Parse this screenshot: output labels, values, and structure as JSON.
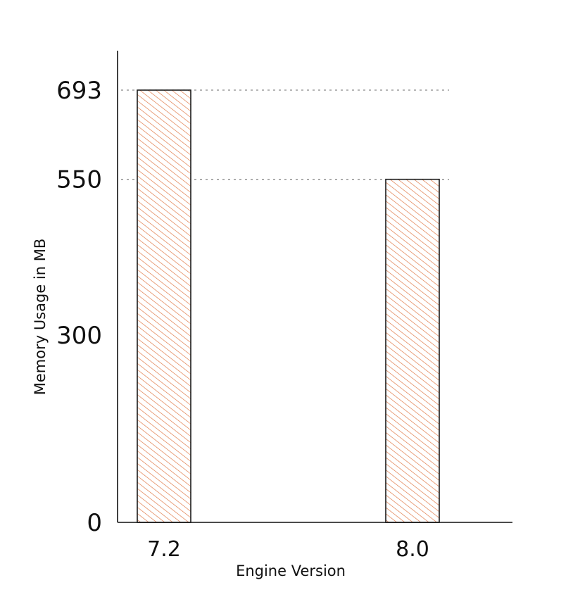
{
  "chart_data": {
    "type": "bar",
    "categories": [
      "7.2",
      "8.0"
    ],
    "values": [
      693,
      550
    ],
    "xlabel": "Engine Version",
    "ylabel": "Memory Usage in MB",
    "y_ticks": [
      0,
      300,
      550,
      693
    ],
    "ylim": [
      0,
      693
    ],
    "reference_lines": [
      693,
      550
    ],
    "grid": false,
    "legend": "none",
    "bar_fill": "hatched",
    "colors": {
      "bar_hatch": "#e07b4a",
      "bar_outline": "#1b1b1b",
      "axis": "#111111",
      "reference_line": "#8a8a8a",
      "text": "#111111",
      "background": "#ffffff"
    }
  }
}
